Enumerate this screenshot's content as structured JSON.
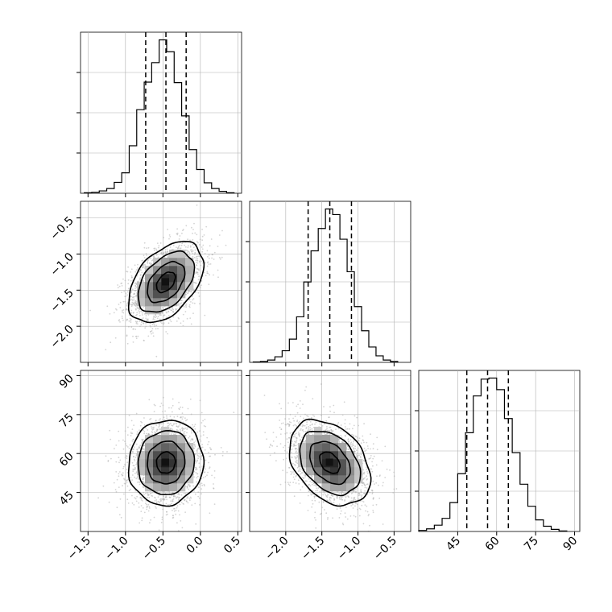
{
  "chart_data": {
    "type": "corner",
    "params": [
      {
        "range": [
          -1.6,
          0.55
        ],
        "ticks": [
          -1.5,
          -1.0,
          -0.5,
          0.0,
          0.5
        ],
        "tick_labels": [
          "−1.5",
          "−1.0",
          "−0.5",
          "0.0",
          "0.5"
        ],
        "quantiles": [
          -0.73,
          -0.46,
          -0.19
        ]
      },
      {
        "range": [
          -2.5,
          -0.27
        ],
        "ticks": [
          -2.0,
          -1.5,
          -1.0,
          -0.5
        ],
        "tick_labels": [
          "−2.0",
          "−1.5",
          "−1.0",
          "−0.5"
        ],
        "quantiles": [
          -1.69,
          -1.39,
          -1.09
        ]
      },
      {
        "range": [
          30,
          92
        ],
        "ticks": [
          45,
          60,
          75,
          90
        ],
        "tick_labels": [
          "45",
          "60",
          "75",
          "90"
        ],
        "quantiles": [
          48.5,
          56.5,
          64.5
        ]
      }
    ],
    "histograms": [
      {
        "edges": [
          -1.55,
          -1.45,
          -1.35,
          -1.25,
          -1.15,
          -1.05,
          -0.95,
          -0.85,
          -0.75,
          -0.65,
          -0.55,
          -0.45,
          -0.35,
          -0.25,
          -0.15,
          -0.05,
          0.05,
          0.15,
          0.25,
          0.35,
          0.45
        ],
        "counts": [
          1,
          2,
          5,
          10,
          23,
          43,
          100,
          176,
          234,
          275,
          323,
          298,
          233,
          163,
          92,
          50,
          22,
          10,
          4,
          1
        ]
      },
      {
        "edges": [
          -2.45,
          -2.35,
          -2.25,
          -2.15,
          -2.05,
          -1.95,
          -1.85,
          -1.75,
          -1.65,
          -1.55,
          -1.45,
          -1.35,
          -1.25,
          -1.15,
          -1.05,
          -0.95,
          -0.85,
          -0.75,
          -0.65,
          -0.55,
          -0.45
        ],
        "counts": [
          1,
          2,
          5,
          12,
          25,
          50,
          98,
          173,
          240,
          288,
          330,
          318,
          265,
          195,
          120,
          68,
          33,
          14,
          5,
          2
        ]
      },
      {
        "edges": [
          30,
          33,
          36,
          39,
          42,
          45,
          48,
          51,
          54,
          57,
          60,
          63,
          66,
          69,
          72,
          75,
          78,
          81,
          84,
          87
        ],
        "counts": [
          2,
          5,
          12,
          25,
          55,
          110,
          188,
          258,
          290,
          292,
          270,
          215,
          150,
          90,
          48,
          22,
          10,
          4,
          1
        ]
      }
    ],
    "pairs": [
      {
        "x": 0,
        "y": 1,
        "mean": [
          -0.46,
          -1.39
        ],
        "sd": [
          0.25,
          0.28
        ],
        "rho": 0.45
      },
      {
        "x": 0,
        "y": 2,
        "mean": [
          -0.46,
          56.5
        ],
        "sd": [
          0.25,
          8.2
        ],
        "rho": 0.05
      },
      {
        "x": 1,
        "y": 2,
        "mean": [
          -1.39,
          56.5
        ],
        "sd": [
          0.28,
          8.2
        ],
        "rho": -0.35
      }
    ],
    "contour_levels_sigma": [
      0.5,
      1.0,
      1.5,
      2.0
    ],
    "colors": {
      "line": "#000000",
      "points": "#b0b0b0",
      "grid": "#b0b0b0",
      "density": "#000000"
    },
    "grid": true
  }
}
